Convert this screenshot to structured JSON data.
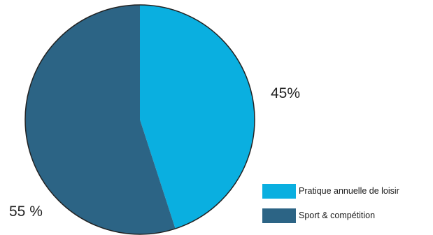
{
  "chart_data": {
    "type": "pie",
    "slices": [
      {
        "label": "Pratique annuelle de loisir",
        "value": 45,
        "value_label": "45%",
        "color": "#0aafe0"
      },
      {
        "label": "Sport & compétition",
        "value": 55,
        "value_label": "55 %",
        "color": "#2c6485"
      }
    ],
    "legend": {
      "position": "bottom-right",
      "entries": [
        "Pratique annuelle de loisir",
        "Sport & compétition"
      ]
    },
    "edge_color": "#222222"
  }
}
